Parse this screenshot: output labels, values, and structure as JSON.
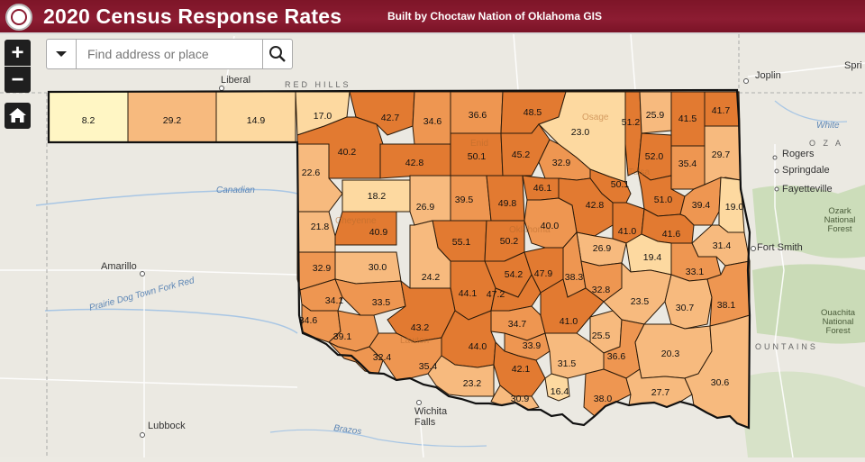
{
  "header": {
    "title": "2020 Census Response Rates",
    "subtitle": "Built by Choctaw Nation of Oklahoma GIS"
  },
  "search": {
    "placeholder": "Find address or place"
  },
  "controls": {
    "zoom_in": "+",
    "zoom_out": "−"
  },
  "colors": {
    "header": "#8c1c32",
    "ramp": [
      "#fff6c4",
      "#fdd9a0",
      "#f7ba7e",
      "#ee9651",
      "#e27a31"
    ]
  },
  "basemap_labels": {
    "places": [
      "Liberal",
      "Joplin",
      "Rogers",
      "Springdale",
      "Fayetteville",
      "Fort Smith",
      "Amarillo",
      "Lubbock",
      "Wichita",
      "Falls"
    ],
    "features": [
      "RED HILLS",
      "Canadian",
      "Prairie Dog Town Fork Red",
      "Brazos",
      "White",
      "Ozark",
      "National",
      "Forest",
      "Ouachita",
      "OUNTAINS",
      "O Z A",
      "Spri"
    ],
    "faint": [
      "Osage",
      "Enid",
      "Tulsa",
      "Oklahoma",
      "Cheyenne",
      "Lawton"
    ]
  },
  "counties": [
    {
      "value": "8.2",
      "fill": 0
    },
    {
      "value": "29.2",
      "fill": 2
    },
    {
      "value": "14.9",
      "fill": 1
    },
    {
      "value": "17.0",
      "fill": 1
    },
    {
      "value": "42.7",
      "fill": 4
    },
    {
      "value": "34.6",
      "fill": 3
    },
    {
      "value": "36.6",
      "fill": 3
    },
    {
      "value": "48.5",
      "fill": 4
    },
    {
      "value": "23.0",
      "fill": 1
    },
    {
      "value": "51.2",
      "fill": 4
    },
    {
      "value": "25.9",
      "fill": 2
    },
    {
      "value": "41.5",
      "fill": 4
    },
    {
      "value": "41.7",
      "fill": 4
    },
    {
      "value": "40.2",
      "fill": 4
    },
    {
      "value": "42.8",
      "fill": 4
    },
    {
      "value": "50.1",
      "fill": 4
    },
    {
      "value": "45.2",
      "fill": 4
    },
    {
      "value": "32.9",
      "fill": 3
    },
    {
      "value": "52.0",
      "fill": 4
    },
    {
      "value": "35.4",
      "fill": 3
    },
    {
      "value": "29.7",
      "fill": 2
    },
    {
      "value": "22.6",
      "fill": 2
    },
    {
      "value": "18.2",
      "fill": 1
    },
    {
      "value": "26.9",
      "fill": 2
    },
    {
      "value": "39.5",
      "fill": 3
    },
    {
      "value": "49.8",
      "fill": 4
    },
    {
      "value": "46.1",
      "fill": 4
    },
    {
      "value": "50.1",
      "fill": 4
    },
    {
      "value": "42.8",
      "fill": 4
    },
    {
      "value": "51.0",
      "fill": 4
    },
    {
      "value": "39.4",
      "fill": 3
    },
    {
      "value": "19.0",
      "fill": 1
    },
    {
      "value": "21.8",
      "fill": 2
    },
    {
      "value": "40.9",
      "fill": 4
    },
    {
      "value": "55.1",
      "fill": 4
    },
    {
      "value": "50.2",
      "fill": 4
    },
    {
      "value": "40.0",
      "fill": 3
    },
    {
      "value": "41.0",
      "fill": 4
    },
    {
      "value": "41.6",
      "fill": 4
    },
    {
      "value": "26.9",
      "fill": 2
    },
    {
      "value": "31.4",
      "fill": 2
    },
    {
      "value": "19.4",
      "fill": 1
    },
    {
      "value": "32.9",
      "fill": 3
    },
    {
      "value": "30.0",
      "fill": 2
    },
    {
      "value": "24.2",
      "fill": 2
    },
    {
      "value": "54.2",
      "fill": 4
    },
    {
      "value": "47.9",
      "fill": 4
    },
    {
      "value": "38.3",
      "fill": 3
    },
    {
      "value": "33.1",
      "fill": 3
    },
    {
      "value": "44.1",
      "fill": 4
    },
    {
      "value": "47.2",
      "fill": 4
    },
    {
      "value": "32.8",
      "fill": 3
    },
    {
      "value": "34.1",
      "fill": 3
    },
    {
      "value": "33.5",
      "fill": 3
    },
    {
      "value": "23.5",
      "fill": 2
    },
    {
      "value": "30.7",
      "fill": 2
    },
    {
      "value": "38.1",
      "fill": 3
    },
    {
      "value": "34.6",
      "fill": 3
    },
    {
      "value": "43.2",
      "fill": 4
    },
    {
      "value": "34.7",
      "fill": 3
    },
    {
      "value": "41.0",
      "fill": 4
    },
    {
      "value": "39.1",
      "fill": 3
    },
    {
      "value": "25.5",
      "fill": 2
    },
    {
      "value": "44.0",
      "fill": 4
    },
    {
      "value": "33.9",
      "fill": 3
    },
    {
      "value": "36.6",
      "fill": 3
    },
    {
      "value": "20.3",
      "fill": 2
    },
    {
      "value": "32.4",
      "fill": 3
    },
    {
      "value": "35.4",
      "fill": 3
    },
    {
      "value": "42.1",
      "fill": 4
    },
    {
      "value": "31.5",
      "fill": 2
    },
    {
      "value": "23.2",
      "fill": 2
    },
    {
      "value": "30.9",
      "fill": 2
    },
    {
      "value": "16.4",
      "fill": 1
    },
    {
      "value": "38.0",
      "fill": 3
    },
    {
      "value": "27.7",
      "fill": 2
    },
    {
      "value": "30.6",
      "fill": 2
    }
  ]
}
